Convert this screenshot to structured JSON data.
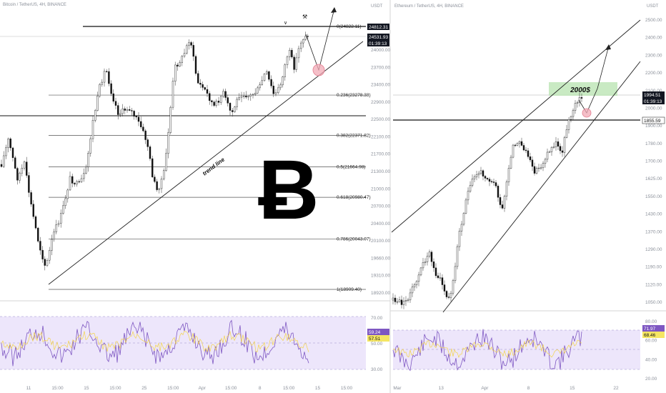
{
  "left": {
    "header": "Bitcoin / TetherUS, 4H, BINANCE",
    "currency": "USDT",
    "symbol_glyph": "Ƀ",
    "trend_label": "trend line",
    "price_ticks": [
      "24000.00",
      "23700.00",
      "23400.00",
      "22900.00",
      "22500.00",
      "22100.00",
      "21700.00",
      "21300.00",
      "21000.00",
      "20700.00",
      "20400.00",
      "20100.00",
      "19660.00",
      "19310.00",
      "18920.00"
    ],
    "price_tags": [
      {
        "value": "24812.31",
        "dark": true
      },
      {
        "value": "24531.93",
        "dark": true
      },
      {
        "value": "01:39:13",
        "dark": true
      }
    ],
    "fib_levels": [
      {
        "label": "0(24822.11)",
        "price": 24822.11
      },
      {
        "label": "0.236(23278.38)",
        "price": 23278.38
      },
      {
        "label": "0.382(22371.82)",
        "price": 22371.82
      },
      {
        "label": "0.5(21664.98)",
        "price": 21664.98
      },
      {
        "label": "0.618(20980.47)",
        "price": 20980.47
      },
      {
        "label": "0.786(20043.07)",
        "price": 20043.07
      },
      {
        "label": "1(18909.40)",
        "price": 18909.4
      }
    ],
    "rsi_ticks": [
      "70.00",
      "50.00",
      "30.00"
    ],
    "rsi_tags": [
      {
        "value": "59.24",
        "color": "#7e57c2"
      },
      {
        "value": "57.51",
        "color": "#f5e663"
      }
    ],
    "time_ticks": [
      "11",
      "15:00",
      "15",
      "15:00",
      "25",
      "15:00",
      "Apr",
      "15:00",
      "8",
      "15:00",
      "15",
      "15:00"
    ]
  },
  "right": {
    "header": "Ethereum / TetherUS, 4H, BINANCE",
    "currency": "USDT",
    "zone_label": "2000$",
    "price_ticks": [
      "2500.00",
      "2400.00",
      "2300.00",
      "2200.00",
      "2100.00",
      "2000.00",
      "1900.00",
      "1780.00",
      "1700.00",
      "1625.00",
      "1550.00",
      "1430.00",
      "1370.00",
      "1290.00",
      "1190.00",
      "1120.00",
      "1050.00"
    ],
    "price_tags": [
      {
        "value": "1994.51",
        "dark": true
      },
      {
        "value": "01:39:13",
        "dark": true
      },
      {
        "value": "1855.59",
        "dark": false
      }
    ],
    "rsi_ticks": [
      "80.00",
      "60.00",
      "40.00",
      "20.00"
    ],
    "rsi_tags": [
      {
        "value": "71.97",
        "color": "#7e57c2"
      },
      {
        "value": "68.46",
        "color": "#f5e663"
      }
    ],
    "time_ticks": [
      "Mar",
      "13",
      "Apr",
      "8",
      "15",
      "22"
    ]
  }
}
